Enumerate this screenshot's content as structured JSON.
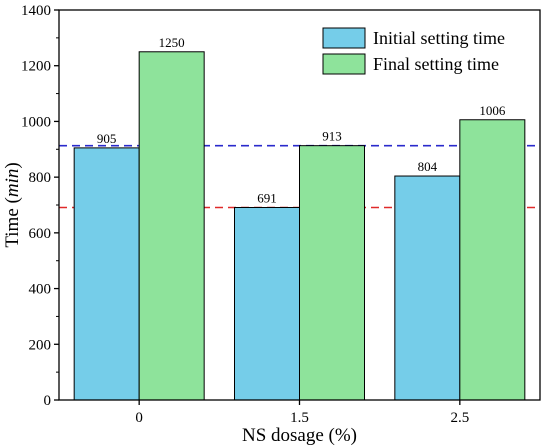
{
  "chart_data": {
    "type": "bar",
    "categories": [
      "0",
      "1.5",
      "2.5"
    ],
    "series": [
      {
        "name": "Initial setting time",
        "values": [
          905,
          691,
          804
        ],
        "color": "#75cde9"
      },
      {
        "name": "Final setting time",
        "values": [
          1250,
          913,
          1006
        ],
        "color": "#8ee39b"
      }
    ],
    "data_labels": [
      [
        "905",
        "691",
        "804"
      ],
      [
        "1250",
        "913",
        "1006"
      ]
    ],
    "xlabel": "NS dosage (%)",
    "ylabel": {
      "prefix": "Time (",
      "unit": "min",
      "suffix": ")"
    },
    "ylim": [
      0,
      1400
    ],
    "yticks": [
      "0",
      "200",
      "400",
      "600",
      "800",
      "1000",
      "1200",
      "1400"
    ],
    "reference_lines": [
      {
        "value": 913,
        "color": "#2a2acc",
        "style": "dashed"
      },
      {
        "value": 691,
        "color": "#e02a2a",
        "style": "dashed"
      }
    ],
    "legend_position": "top-right",
    "grid": false
  }
}
